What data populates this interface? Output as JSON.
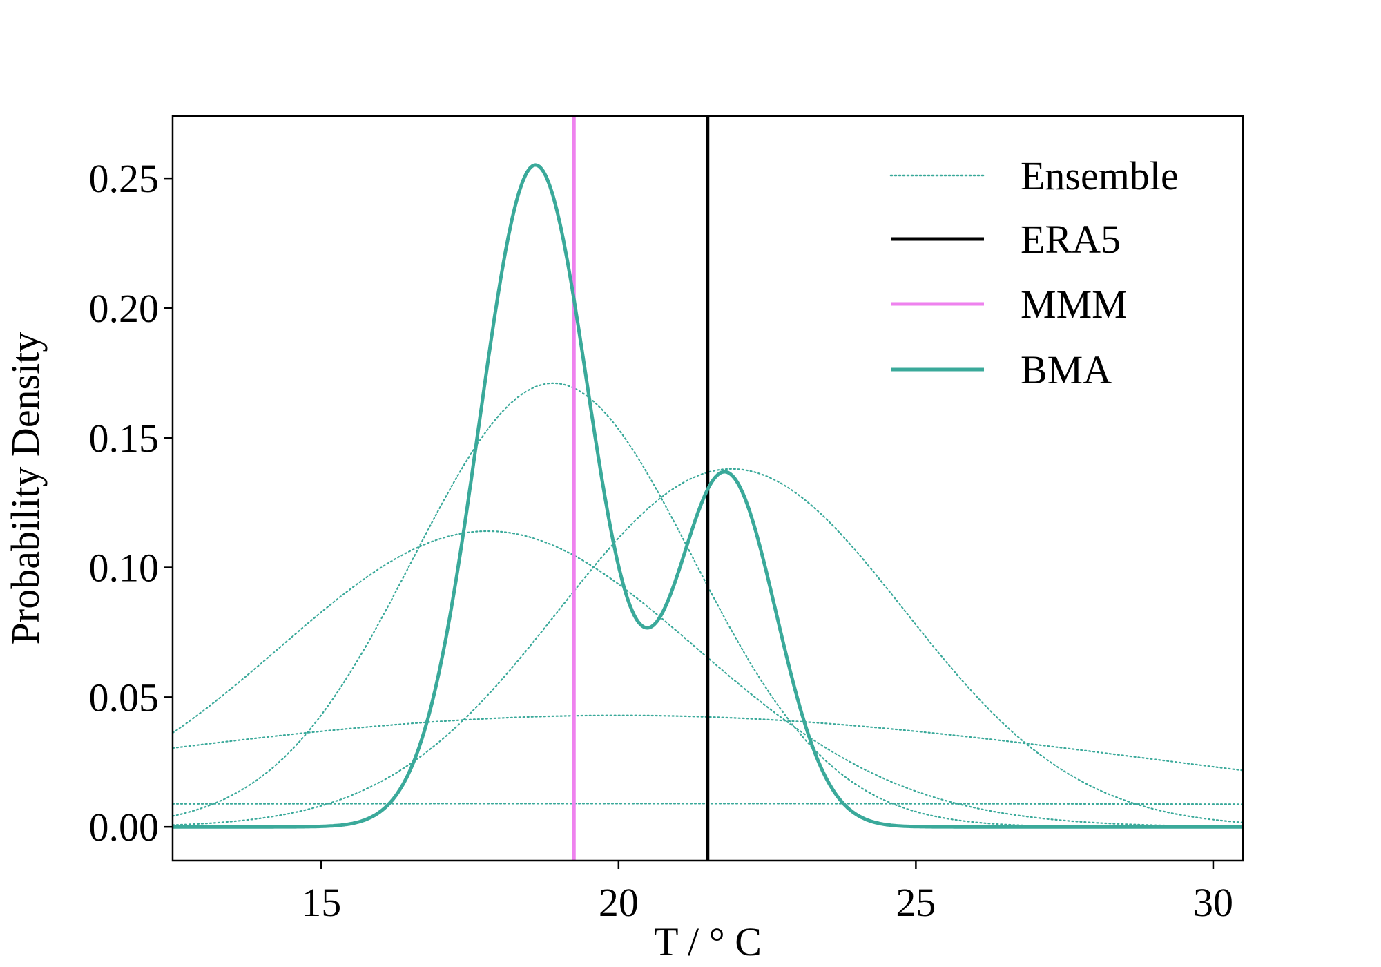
{
  "chart_data": {
    "type": "line",
    "title": "",
    "xlabel": "T / ° C",
    "ylabel": "Probability Density",
    "xlim": [
      12.5,
      30.5
    ],
    "ylim": [
      -0.013,
      0.274
    ],
    "xticks": [
      15,
      20,
      25,
      30
    ],
    "xtick_labels": [
      "15",
      "20",
      "25",
      "30"
    ],
    "yticks": [
      0.0,
      0.05,
      0.1,
      0.15,
      0.2,
      0.25
    ],
    "ytick_labels": [
      "0.00",
      "0.05",
      "0.10",
      "0.15",
      "0.20",
      "0.25"
    ],
    "grid": false,
    "legend_position": "top-right",
    "series": [
      {
        "name": "Ensemble",
        "style": "dotted",
        "color": "#3aa99a",
        "components": [
          {
            "mean": 18.9,
            "sd": 2.35,
            "peak": 0.171
          },
          {
            "mean": 17.8,
            "sd": 3.5,
            "peak": 0.114
          },
          {
            "mean": 21.9,
            "sd": 2.9,
            "peak": 0.138
          },
          {
            "mean": 20.0,
            "sd": 9.0,
            "peak": 0.043
          },
          {
            "mean": 20.0,
            "sd": 45.0,
            "peak": 0.009
          }
        ]
      },
      {
        "name": "ERA5",
        "style": "vline",
        "color": "#000000",
        "x": 21.5
      },
      {
        "name": "MMM",
        "style": "vline",
        "color": "#ee82ee",
        "x": 19.25
      },
      {
        "name": "BMA",
        "style": "solid",
        "color": "#3aa99a",
        "components": [
          {
            "mean": 18.6,
            "sd": 0.95,
            "peak": 0.255
          },
          {
            "mean": 21.8,
            "sd": 0.85,
            "peak": 0.136
          }
        ]
      }
    ],
    "legend": [
      {
        "label": "Ensemble",
        "style": "dotted",
        "color": "#3aa99a"
      },
      {
        "label": "ERA5",
        "style": "solid",
        "color": "#000000"
      },
      {
        "label": "MMM",
        "style": "solid",
        "color": "#ee82ee"
      },
      {
        "label": "BMA",
        "style": "solid",
        "color": "#3aa99a"
      }
    ]
  }
}
